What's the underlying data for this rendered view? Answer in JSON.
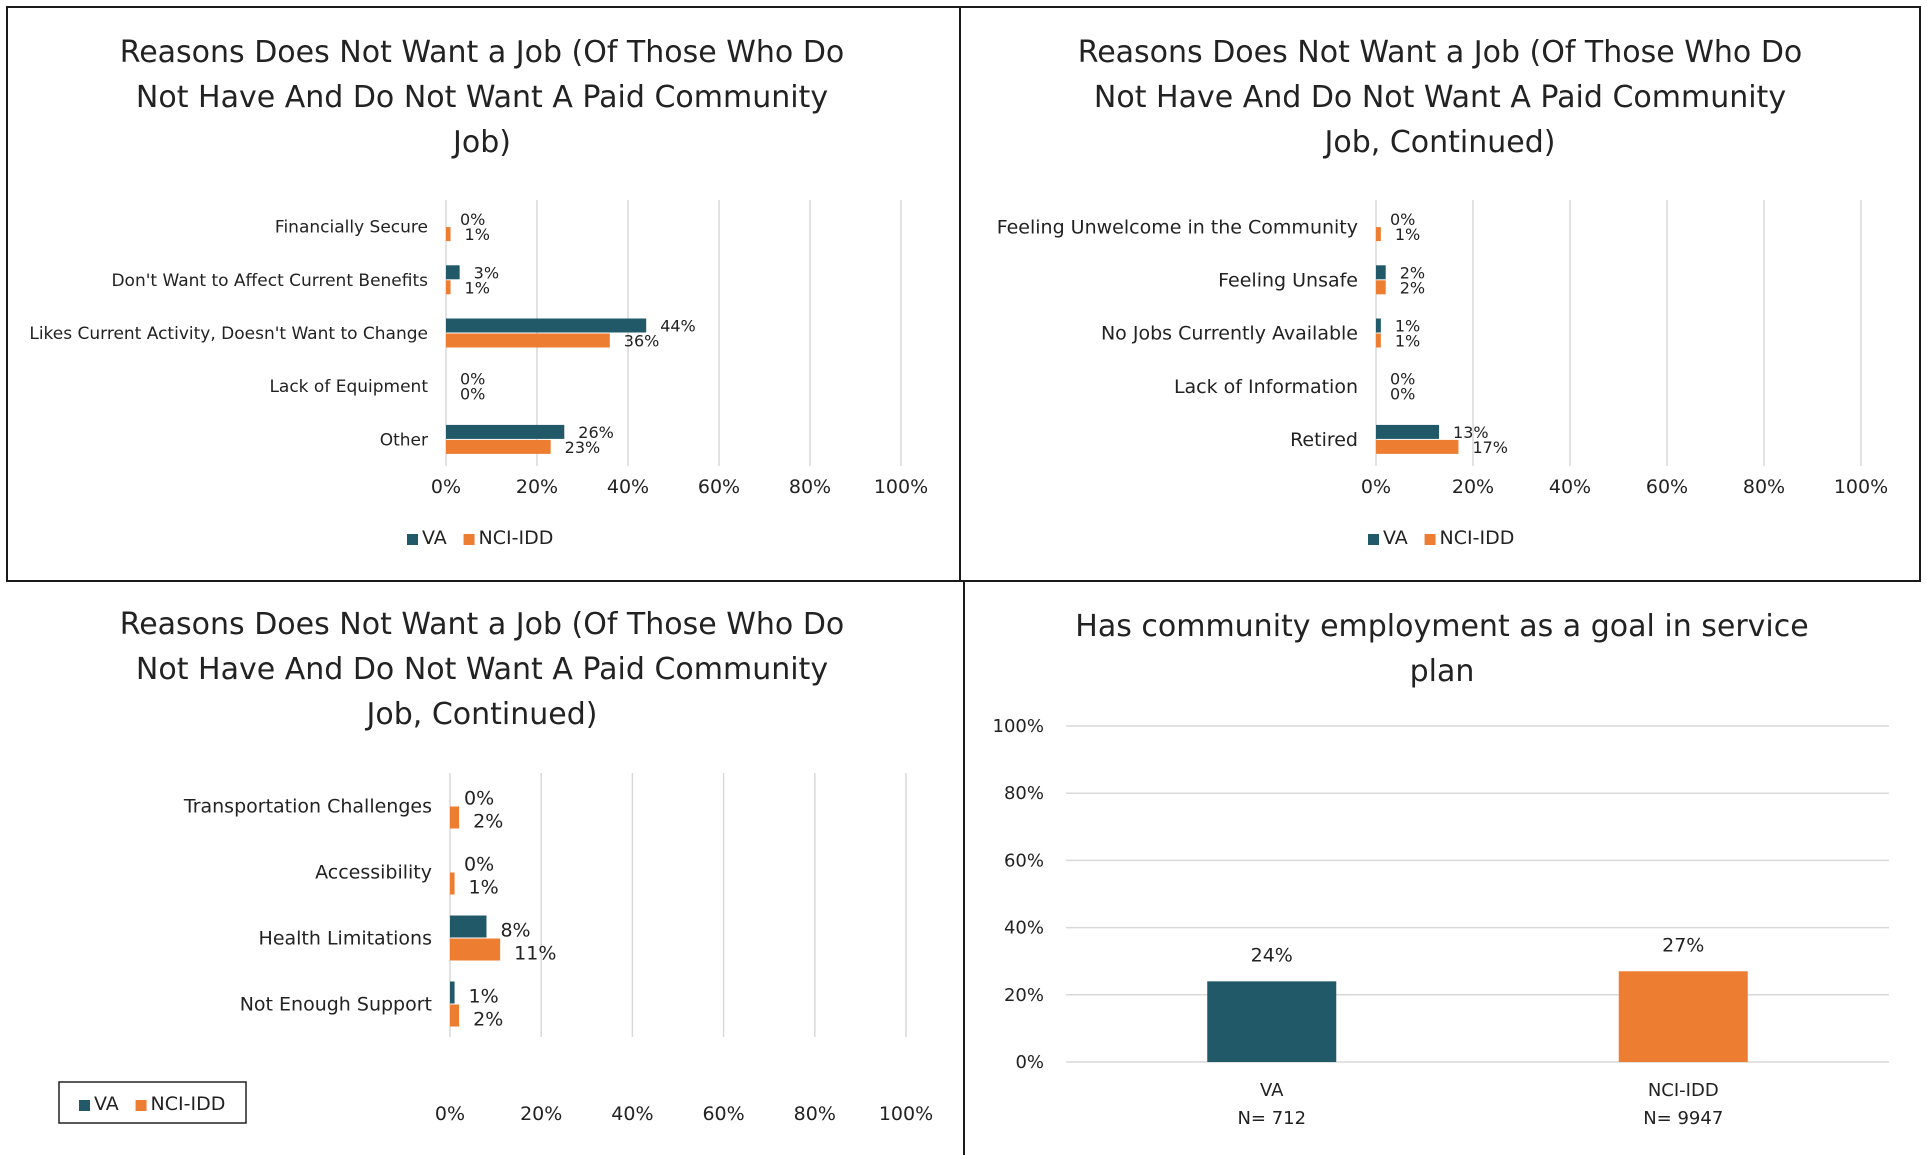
{
  "colors": {
    "va": "#215968",
    "nci": "#ED7D31"
  },
  "legend": {
    "va": "VA",
    "nci": "NCI-IDD"
  },
  "chart_data": [
    {
      "type": "bar",
      "orientation": "horizontal",
      "title_lines": [
        "Reasons Does Not Want a Job (Of Those Who Do",
        "Not Have And Do Not Want A Paid Community",
        "Job)"
      ],
      "categories": [
        "Financially Secure",
        "Don't Want to Affect Current Benefits",
        "Likes Current Activity, Doesn't Want to Change",
        "Lack of Equipment",
        "Other"
      ],
      "series": [
        {
          "name": "VA",
          "values": [
            0,
            3,
            44,
            0,
            26
          ],
          "labels": [
            "0%",
            "3%",
            "44%",
            "0%",
            "26%"
          ]
        },
        {
          "name": "NCI-IDD",
          "values": [
            1,
            1,
            36,
            0,
            23
          ],
          "labels": [
            "1%",
            "1%",
            "36%",
            "0%",
            "23%"
          ]
        }
      ],
      "xlim": [
        0,
        100
      ],
      "ticks": [
        "0%",
        "20%",
        "40%",
        "60%",
        "80%",
        "100%"
      ],
      "grid": true,
      "legend_position": "bottom"
    },
    {
      "type": "bar",
      "orientation": "horizontal",
      "title_lines": [
        "Reasons Does Not Want a Job (Of Those Who Do",
        "Not Have And Do Not Want A Paid Community",
        "Job, Continued)"
      ],
      "categories": [
        "Feeling Unwelcome in the Community",
        "Feeling Unsafe",
        "No Jobs Currently Available",
        "Lack of Information",
        "Retired"
      ],
      "series": [
        {
          "name": "VA",
          "values": [
            0,
            2,
            1,
            0,
            13
          ],
          "labels": [
            "0%",
            "2%",
            "1%",
            "0%",
            "13%"
          ]
        },
        {
          "name": "NCI-IDD",
          "values": [
            1,
            2,
            1,
            0,
            17
          ],
          "labels": [
            "1%",
            "2%",
            "1%",
            "0%",
            "17%"
          ]
        }
      ],
      "xlim": [
        0,
        100
      ],
      "ticks": [
        "0%",
        "20%",
        "40%",
        "60%",
        "80%",
        "100%"
      ],
      "grid": true,
      "legend_position": "bottom"
    },
    {
      "type": "bar",
      "orientation": "horizontal",
      "title_lines": [
        "Reasons Does Not Want a Job (Of Those Who Do",
        "Not Have And Do Not Want A Paid Community",
        "Job, Continued)"
      ],
      "categories": [
        "Transportation Challenges",
        "Accessibility",
        "Health Limitations",
        "Not Enough Support"
      ],
      "series": [
        {
          "name": "VA",
          "values": [
            0,
            0,
            8,
            1
          ],
          "labels": [
            "0%",
            "0%",
            "8%",
            "1%"
          ]
        },
        {
          "name": "NCI-IDD",
          "values": [
            2,
            1,
            11,
            2
          ],
          "labels": [
            "2%",
            "1%",
            "11%",
            "2%"
          ]
        }
      ],
      "xlim": [
        0,
        100
      ],
      "ticks": [
        "0%",
        "20%",
        "40%",
        "60%",
        "80%",
        "100%"
      ],
      "grid": true,
      "legend_position": "bottom-left (boxed)"
    },
    {
      "type": "bar",
      "orientation": "vertical",
      "title_lines": [
        "Has community employment as a goal in service",
        "plan"
      ],
      "categories": [
        {
          "name": "VA",
          "n": "N= 712"
        },
        {
          "name": "NCI-IDD",
          "n": "N= 9947"
        }
      ],
      "values": [
        24,
        27
      ],
      "labels": [
        "24%",
        "27%"
      ],
      "ylim": [
        0,
        100
      ],
      "ticks": [
        "0%",
        "20%",
        "40%",
        "60%",
        "80%",
        "100%"
      ],
      "grid": true
    }
  ]
}
